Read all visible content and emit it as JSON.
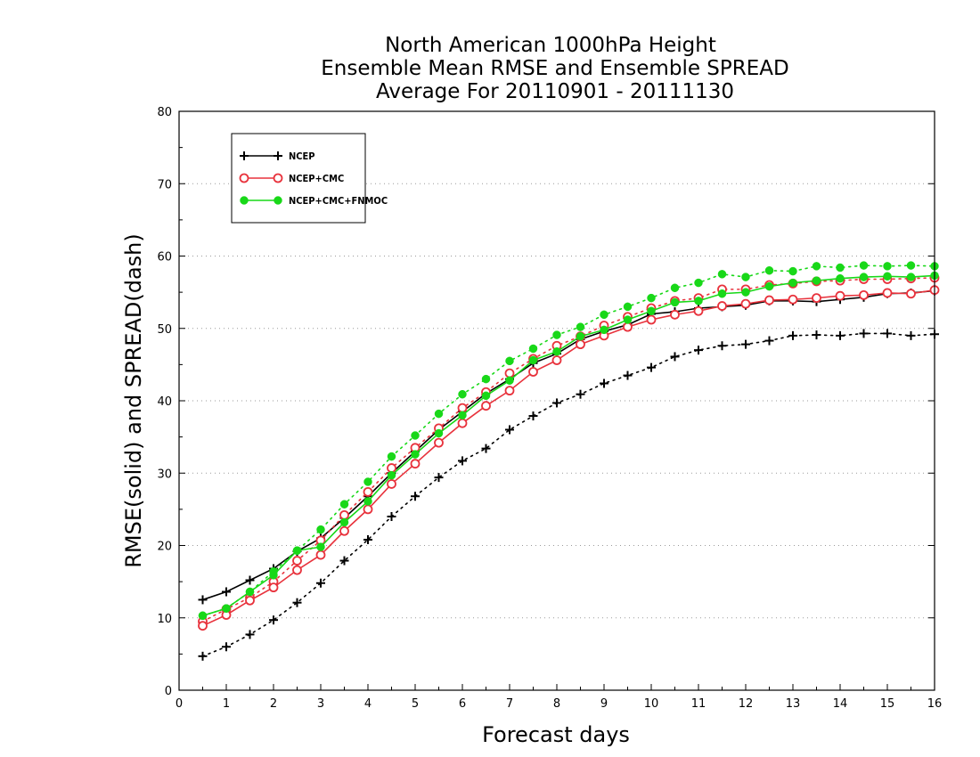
{
  "chart_data": {
    "type": "line",
    "title": [
      "North American 1000hPa Height",
      "Ensemble Mean RMSE and Ensemble SPREAD",
      "Average For 20110901 - 20111130"
    ],
    "xlabel": "Forecast days",
    "ylabel": "RMSE(solid) and SPREAD(dash)",
    "xlim": [
      0,
      16
    ],
    "ylim": [
      0,
      80
    ],
    "xticks": [
      0,
      1,
      2,
      3,
      4,
      5,
      6,
      7,
      8,
      9,
      10,
      11,
      12,
      13,
      14,
      15,
      16
    ],
    "yticks": [
      0,
      10,
      20,
      30,
      40,
      50,
      60,
      70,
      80
    ],
    "grid": "horizontal dotted",
    "legend_position": "top-left",
    "x": [
      0.5,
      1.0,
      1.5,
      2.0,
      2.5,
      3.0,
      3.5,
      4.0,
      4.5,
      5.0,
      5.5,
      6.0,
      6.5,
      7.0,
      7.5,
      8.0,
      8.5,
      9.0,
      9.5,
      10.0,
      10.5,
      11.0,
      11.5,
      12.0,
      12.5,
      13.0,
      13.5,
      14.0,
      14.5,
      15.0,
      15.5,
      16.0
    ],
    "series": [
      {
        "name": "NCEP",
        "color": "#000000",
        "marker": "plus",
        "rmse": [
          12.5,
          13.6,
          15.2,
          16.8,
          19.2,
          21.0,
          23.8,
          26.8,
          30.0,
          33.0,
          36.0,
          38.5,
          41.0,
          43.0,
          45.2,
          46.5,
          48.5,
          49.6,
          50.5,
          52.0,
          52.3,
          52.8,
          53.0,
          53.2,
          53.8,
          53.8,
          53.7,
          54.0,
          54.3,
          54.8,
          54.9,
          55.2
        ],
        "spread": [
          4.7,
          6.0,
          7.7,
          9.7,
          12.1,
          14.8,
          17.9,
          20.8,
          24.0,
          26.8,
          29.4,
          31.7,
          33.4,
          36.0,
          37.9,
          39.7,
          40.9,
          42.4,
          43.5,
          44.6,
          46.1,
          47.0,
          47.6,
          47.8,
          48.3,
          49.0,
          49.1,
          49.0,
          49.3,
          49.3,
          49.0,
          49.2
        ]
      },
      {
        "name": "NCEP+CMC",
        "color": "#e8323c",
        "marker": "open-circle",
        "rmse": [
          8.9,
          10.4,
          12.4,
          14.2,
          16.6,
          18.7,
          22.0,
          25.0,
          28.5,
          31.3,
          34.2,
          36.9,
          39.3,
          41.4,
          44.0,
          45.6,
          47.8,
          49.0,
          50.2,
          51.2,
          51.9,
          52.4,
          53.1,
          53.4,
          53.9,
          54.0,
          54.2,
          54.5,
          54.6,
          54.9,
          54.8,
          55.3
        ],
        "spread": [
          9.5,
          11.2,
          12.8,
          15.0,
          17.9,
          20.7,
          24.2,
          27.4,
          30.7,
          33.5,
          36.2,
          39.0,
          41.2,
          43.8,
          45.8,
          47.6,
          48.9,
          50.4,
          51.6,
          52.8,
          53.8,
          54.2,
          55.4,
          55.4,
          56.0,
          56.2,
          56.5,
          56.6,
          56.8,
          56.8,
          56.9,
          57.0
        ]
      },
      {
        "name": "NCEP+CMC+FNMOC",
        "color": "#18d818",
        "marker": "filled-circle",
        "rmse": [
          10.3,
          11.3,
          13.6,
          15.9,
          19.3,
          19.8,
          23.2,
          26.1,
          29.7,
          32.6,
          35.5,
          38.0,
          40.7,
          42.8,
          45.6,
          46.8,
          48.9,
          49.8,
          51.2,
          52.4,
          53.6,
          53.8,
          54.8,
          55.0,
          55.8,
          56.3,
          56.6,
          56.9,
          57.1,
          57.2,
          57.1,
          57.3
        ],
        "spread": [
          10.3,
          11.3,
          13.6,
          16.4,
          19.3,
          22.2,
          25.7,
          28.8,
          32.3,
          35.2,
          38.2,
          40.9,
          43.0,
          45.5,
          47.2,
          49.1,
          50.2,
          51.9,
          53.0,
          54.2,
          55.6,
          56.3,
          57.5,
          57.1,
          58.0,
          57.9,
          58.6,
          58.4,
          58.7,
          58.6,
          58.7,
          58.6
        ]
      }
    ]
  }
}
